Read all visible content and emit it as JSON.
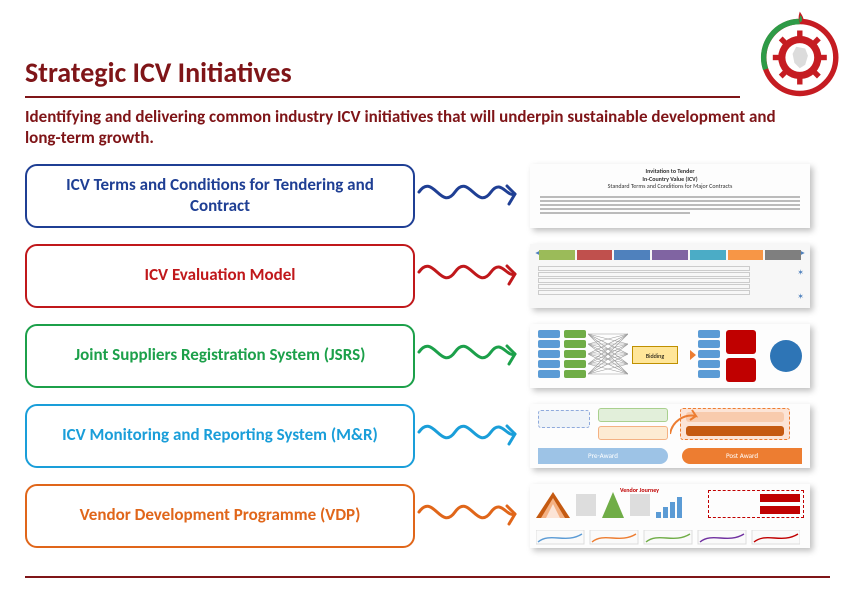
{
  "title": "Strategic ICV Initiatives",
  "subtitle": "Identifying and delivering common industry ICV initiatives that will underpin sustainable development and long-term growth.",
  "colors": {
    "brand": "#7F1518",
    "logo_ring_outer": "#c51c22",
    "logo_ring_green": "#2e9b47",
    "logo_gear": "#c51c22",
    "logo_center": "#ffffff"
  },
  "initiatives": [
    {
      "label": "ICV Terms and Conditions for Tendering and Contract",
      "color": "#1f3f94",
      "thumb": "doc"
    },
    {
      "label": "ICV Evaluation Model",
      "color": "#c0181b",
      "thumb": "table"
    },
    {
      "label": "Joint Suppliers Registration System (JSRS)",
      "color": "#1ca04a",
      "thumb": "jsrs"
    },
    {
      "label": "ICV Monitoring and Reporting System (M&R)",
      "color": "#1a9ed9",
      "thumb": "mr"
    },
    {
      "label": "Vendor Development Programme (VDP)",
      "color": "#e0661a",
      "thumb": "vdp"
    }
  ],
  "doc_thumb": {
    "heading1": "Invitation to Tender",
    "heading2": "In-Country Value (ICV)",
    "heading3": "Standard Terms and Conditions for Major Contracts"
  },
  "mr_thumb": {
    "left": "Pre-Award",
    "right": "Post Award"
  },
  "vdp_thumb": {
    "title": "Vendor Journey"
  }
}
